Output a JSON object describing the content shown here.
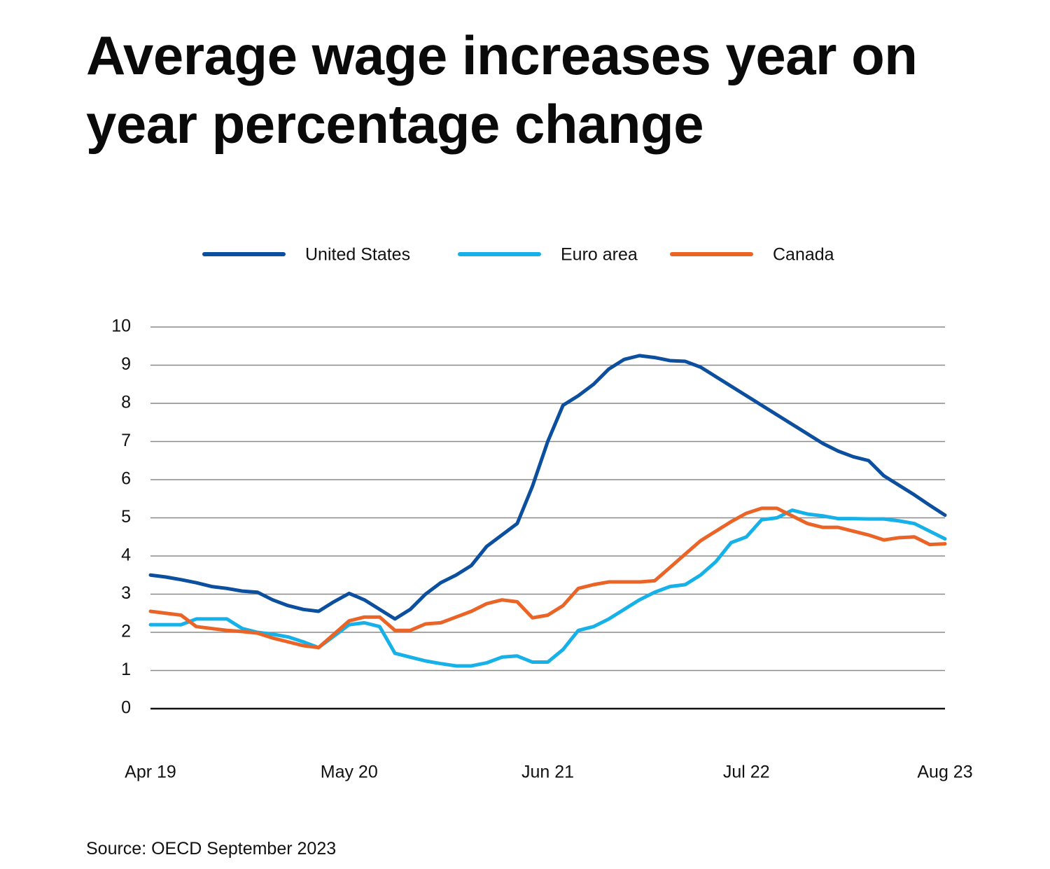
{
  "chart_data": {
    "type": "line",
    "title": "Average wage increases year on year percentage change",
    "source": "Source: OECD September 2023",
    "categories": [
      "Apr 19",
      null,
      null,
      null,
      null,
      null,
      null,
      null,
      null,
      null,
      null,
      null,
      null,
      "May 20",
      null,
      null,
      null,
      null,
      null,
      null,
      null,
      null,
      null,
      null,
      null,
      null,
      "Jun 21",
      null,
      null,
      null,
      null,
      null,
      null,
      null,
      null,
      null,
      null,
      null,
      null,
      "Jul 22",
      null,
      null,
      null,
      null,
      null,
      null,
      null,
      null,
      null,
      null,
      null,
      null,
      "Aug 23"
    ],
    "series": [
      {
        "name": "United States",
        "color": "#0b4f9e",
        "values": [
          3.5,
          3.45,
          3.38,
          3.3,
          3.2,
          3.15,
          3.08,
          3.05,
          2.85,
          2.7,
          2.6,
          2.55,
          2.8,
          3.02,
          2.85,
          2.6,
          2.35,
          2.6,
          3.0,
          3.3,
          3.5,
          3.75,
          4.25,
          4.55,
          4.85,
          5.83,
          7.0,
          7.95,
          8.2,
          8.5,
          8.9,
          9.15,
          9.25,
          9.2,
          9.12,
          9.1,
          8.95,
          8.7,
          8.45,
          8.2,
          7.95,
          7.7,
          7.45,
          7.2,
          6.95,
          6.75,
          6.6,
          6.5,
          6.1,
          5.85,
          5.6,
          5.33,
          5.07
        ]
      },
      {
        "name": "Euro area",
        "color": "#15b1e8",
        "values": [
          2.2,
          2.2,
          2.2,
          2.35,
          2.35,
          2.35,
          2.1,
          2.0,
          1.95,
          1.88,
          1.75,
          1.6,
          1.9,
          2.2,
          2.25,
          2.15,
          1.45,
          1.35,
          1.25,
          1.18,
          1.12,
          1.12,
          1.2,
          1.35,
          1.38,
          1.22,
          1.22,
          1.55,
          2.05,
          2.15,
          2.35,
          2.6,
          2.85,
          3.05,
          3.2,
          3.25,
          3.5,
          3.85,
          4.35,
          4.5,
          4.95,
          5.0,
          5.2,
          5.1,
          5.05,
          4.98,
          4.98,
          4.97,
          4.97,
          4.92,
          4.85,
          4.65,
          4.45
        ]
      },
      {
        "name": "Canada",
        "color": "#ea6428",
        "values": [
          2.55,
          2.5,
          2.45,
          2.15,
          2.1,
          2.05,
          2.02,
          1.98,
          1.85,
          1.75,
          1.65,
          1.6,
          1.95,
          2.3,
          2.4,
          2.4,
          2.05,
          2.05,
          2.22,
          2.25,
          2.4,
          2.55,
          2.75,
          2.85,
          2.8,
          2.38,
          2.45,
          2.7,
          3.15,
          3.25,
          3.32,
          3.32,
          3.32,
          3.35,
          3.7,
          4.05,
          4.4,
          4.65,
          4.9,
          5.12,
          5.25,
          5.25,
          5.05,
          4.85,
          4.75,
          4.75,
          4.65,
          4.55,
          4.42,
          4.48,
          4.5,
          4.3,
          4.32
        ]
      }
    ],
    "ylim": [
      0,
      10
    ],
    "yticks": [
      0,
      1,
      2,
      3,
      4,
      5,
      6,
      7,
      8,
      9,
      10
    ],
    "grid": true,
    "legend": "top"
  }
}
